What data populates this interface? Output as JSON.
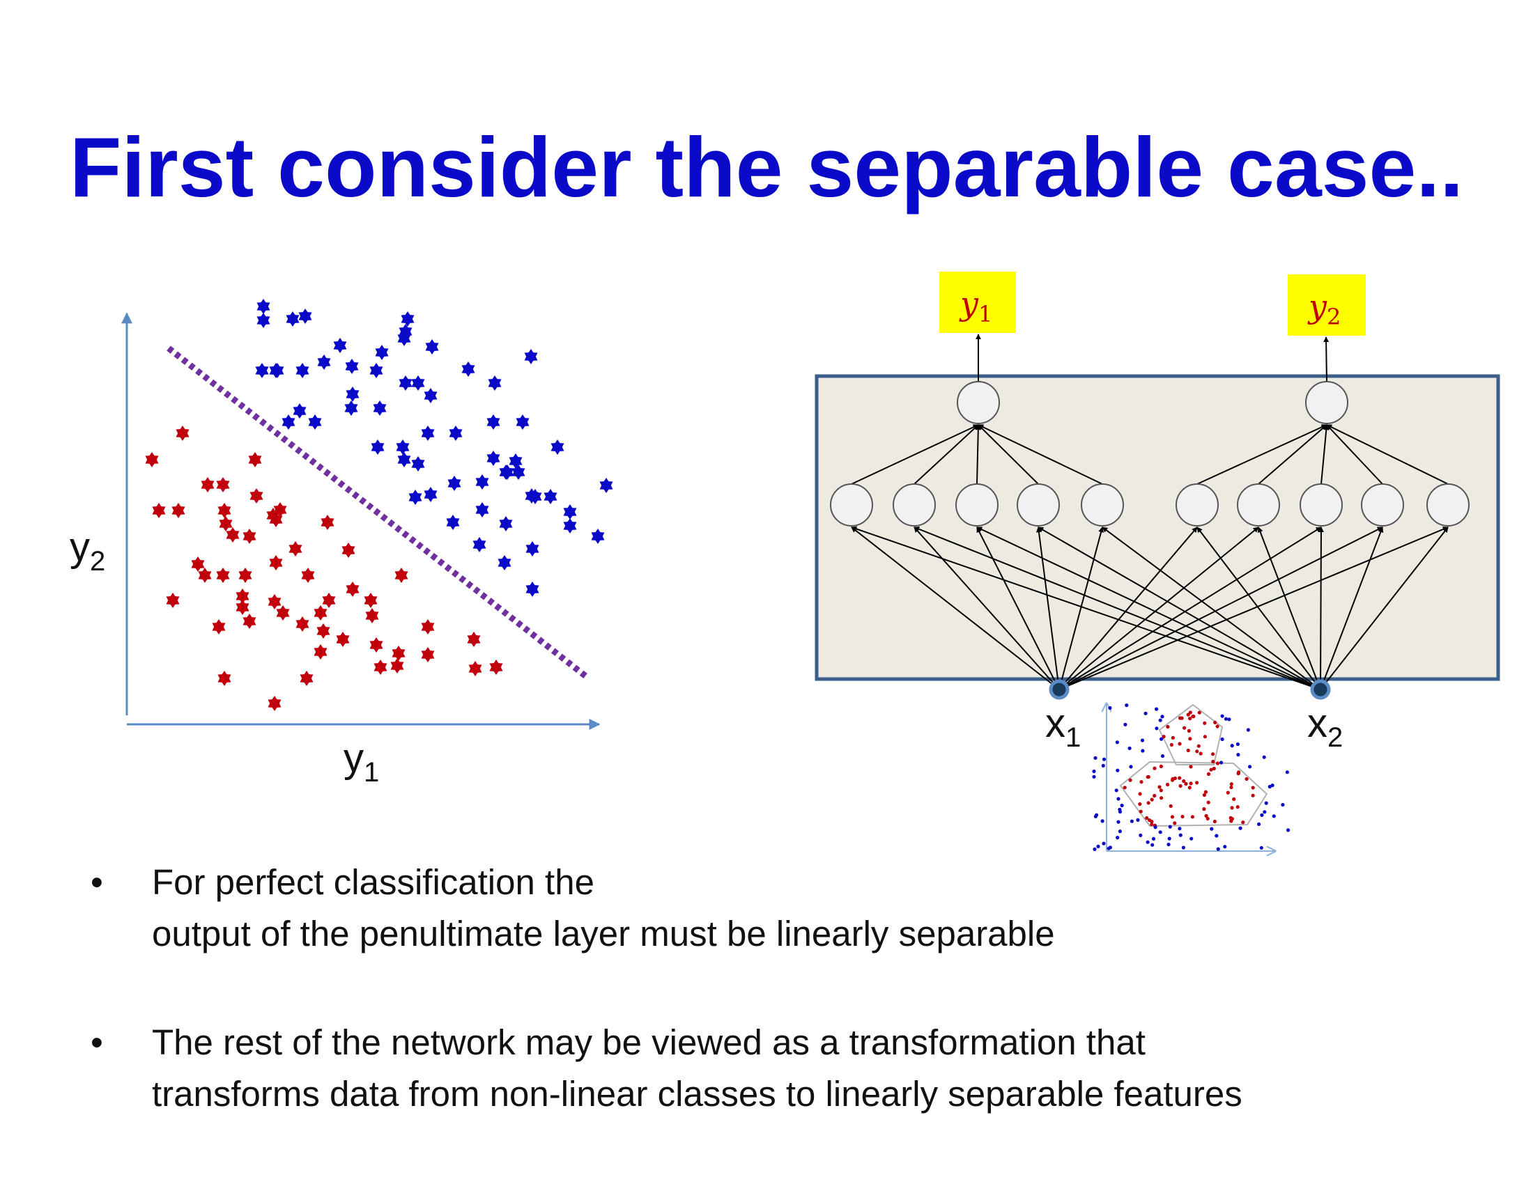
{
  "slide": {
    "title": "First consider the separable case..",
    "bullets": [
      {
        "line1": "For perfect classification the",
        "line2": "output of the penultimate layer must be linearly separable"
      },
      {
        "line1": "The rest of the network may be viewed as a transformation that",
        "line2": "transforms data from non-linear classes to linearly separable features"
      }
    ],
    "bullet_symbol": "•"
  },
  "scatter": {
    "x_label": "y",
    "x_label_sub": "1",
    "y_label": "y",
    "y_label_sub": "2",
    "colors": {
      "class_a": "#0a0ac8",
      "class_b": "#c0000a",
      "separator": "#7030a0",
      "axis": "#5b8bc5"
    }
  },
  "network": {
    "outputs": [
      {
        "symbol": "y",
        "sub": "1"
      },
      {
        "symbol": "y",
        "sub": "2"
      }
    ],
    "inputs": [
      {
        "symbol": "x",
        "sub": "1"
      },
      {
        "symbol": "x",
        "sub": "2"
      }
    ],
    "hidden_per_group": 5,
    "colors": {
      "box_fill": "#edeae2",
      "box_border": "#3a5f8a",
      "output_fill": "#ffff00",
      "output_text": "#c00000"
    }
  }
}
